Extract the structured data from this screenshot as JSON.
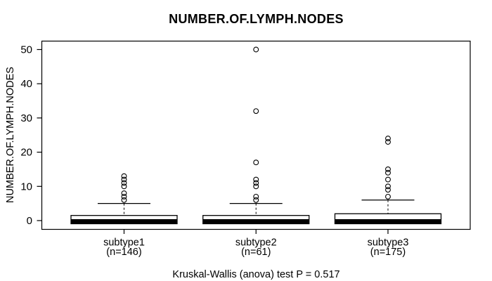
{
  "chart_data": {
    "type": "boxplot",
    "title": "NUMBER.OF.LYMPH.NODES",
    "ylabel": "NUMBER.OF.LYMPH.NODES",
    "xlabel": "",
    "caption": "Kruskal-Wallis (anova) test P = 0.517",
    "ylim": [
      0,
      50
    ],
    "yticks": [
      0,
      10,
      20,
      30,
      40,
      50
    ],
    "grid": false,
    "legend": "none",
    "groups": [
      {
        "label": "subtype1",
        "n_label": "(n=146)",
        "n": 146,
        "q1": 0,
        "median": 0,
        "q3": 1.5,
        "whisker_low": 0,
        "whisker_high": 5,
        "outliers": [
          13,
          12,
          11,
          10,
          8,
          7,
          6
        ]
      },
      {
        "label": "subtype2",
        "n_label": "(n=61)",
        "n": 61,
        "q1": 0,
        "median": 0,
        "q3": 1.5,
        "whisker_low": 0,
        "whisker_high": 5,
        "outliers": [
          50,
          32,
          17,
          12,
          11,
          10,
          7,
          6
        ]
      },
      {
        "label": "subtype3",
        "n_label": "(n=175)",
        "n": 175,
        "q1": 0,
        "median": 0,
        "q3": 2,
        "whisker_low": 0,
        "whisker_high": 6,
        "outliers": [
          24,
          23,
          15,
          14,
          12,
          10,
          9,
          7
        ]
      }
    ],
    "colors": {
      "line": "#000000",
      "box_fill": "#ffffff",
      "median": "#000000",
      "background": "#ffffff"
    }
  }
}
